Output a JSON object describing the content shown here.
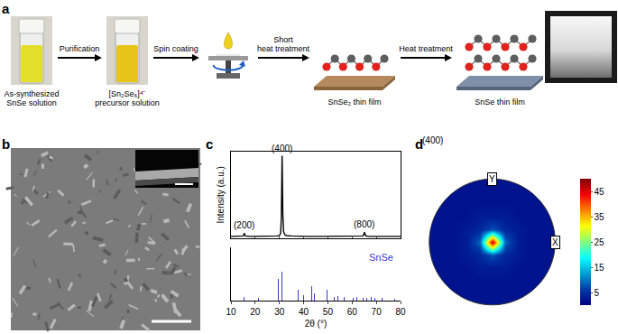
{
  "panels": {
    "a": {
      "letter": "a",
      "steps": [
        {
          "kind": "photo",
          "caption": [
            "As-synthesized",
            "SnSe solution"
          ]
        },
        {
          "kind": "arrow",
          "label": [
            "Purification"
          ]
        },
        {
          "kind": "photo",
          "caption": [
            "[Sn₂Se₆]⁴⁻",
            "precursor solution"
          ]
        },
        {
          "kind": "arrow",
          "label": [
            "Spin coating"
          ]
        },
        {
          "kind": "spin"
        },
        {
          "kind": "arrow",
          "label": [
            "Short",
            "heat treatment"
          ]
        },
        {
          "kind": "film",
          "caption": [
            "SnSe₂ thin film"
          ]
        },
        {
          "kind": "arrow",
          "label": [
            "Heat treatment"
          ]
        },
        {
          "kind": "film",
          "caption": [
            "SnSe thin film"
          ]
        },
        {
          "kind": "sample"
        }
      ]
    },
    "b": {
      "letter": "b"
    },
    "c": {
      "letter": "c"
    },
    "d": {
      "letter": "d"
    }
  },
  "chart_data": [
    {
      "type": "line",
      "x_label": "2θ (°)",
      "y_label": "Intensity (a.u.)",
      "xlim": [
        10,
        80
      ],
      "xticks": [
        10,
        20,
        30,
        40,
        50,
        60,
        70,
        80
      ],
      "ylim": [
        0,
        1.05
      ],
      "y2lim": [
        0,
        1.1
      ],
      "tick_labels": "x",
      "annotations": [
        {
          "text": "(200)",
          "x": 15.5,
          "y": 0.06
        },
        {
          "text": "(400)",
          "x": 31.1,
          "y": 1.0
        },
        {
          "text": "(800)",
          "x": 65.1,
          "y": 0.07
        }
      ],
      "series": [
        {
          "type": "line",
          "color": "#000000",
          "x": [
            10,
            12,
            14,
            15,
            15.3,
            15.5,
            15.7,
            16,
            18,
            20,
            22,
            24,
            26,
            28,
            29,
            30,
            30.5,
            30.8,
            31.0,
            31.1,
            31.2,
            31.4,
            31.7,
            32.2,
            33,
            35,
            38,
            42,
            46,
            50,
            55,
            60,
            63,
            64.5,
            64.9,
            65.1,
            65.3,
            65.7,
            67,
            70,
            75,
            80
          ],
          "values": [
            0.02,
            0.02,
            0.02,
            0.025,
            0.04,
            0.06,
            0.04,
            0.025,
            0.02,
            0.02,
            0.02,
            0.02,
            0.02,
            0.022,
            0.025,
            0.03,
            0.06,
            0.25,
            0.75,
            1.0,
            0.8,
            0.3,
            0.08,
            0.04,
            0.03,
            0.025,
            0.02,
            0.02,
            0.02,
            0.02,
            0.02,
            0.02,
            0.02,
            0.025,
            0.05,
            0.07,
            0.05,
            0.025,
            0.02,
            0.02,
            0.02,
            0.02
          ]
        },
        {
          "type": "bar",
          "name": "SnSe",
          "color": "#3a3ad0",
          "axis": "y2",
          "x": [
            15.4,
            21.5,
            25.3,
            26.4,
            29.4,
            30.5,
            31.1,
            32.0,
            37.8,
            38.3,
            40.1,
            43.3,
            44.5,
            47.2,
            49.7,
            51.3,
            52.7,
            54.0,
            56.7,
            58.0,
            60.6,
            61.8,
            64.5,
            66.0,
            68.0,
            69.5,
            72.5,
            77.5
          ],
          "values": [
            0.08,
            0.05,
            0.22,
            0.3,
            0.45,
            1.0,
            0.6,
            0.12,
            0.22,
            0.15,
            0.12,
            0.3,
            0.15,
            0.12,
            0.22,
            0.12,
            0.08,
            0.1,
            0.08,
            0.1,
            0.06,
            0.08,
            0.06,
            0.05,
            0.07,
            0.05,
            0.05,
            0.04
          ]
        }
      ]
    },
    {
      "type": "heatmap",
      "title": "(400)",
      "x_label": "X",
      "y_label": "Y",
      "tick_labels": false,
      "x": [
        -1,
        -0.8,
        -0.6,
        -0.4,
        -0.2,
        0,
        0.2,
        0.4,
        0.6,
        0.8,
        1
      ],
      "y": [
        -1,
        -0.8,
        -0.6,
        -0.4,
        -0.2,
        0,
        0.2,
        0.4,
        0.6,
        0.8,
        1
      ],
      "z": [
        [
          2,
          2,
          2,
          2,
          2,
          2,
          2,
          2,
          2,
          2,
          2
        ],
        [
          2,
          2,
          2,
          2,
          2,
          2,
          2,
          2,
          2,
          2,
          2
        ],
        [
          2,
          2,
          2,
          2,
          2,
          2,
          2,
          2,
          2,
          2,
          2
        ],
        [
          2,
          2,
          2,
          2,
          3,
          3,
          3,
          2,
          2,
          2,
          2
        ],
        [
          2,
          2,
          2,
          3,
          4,
          8,
          4,
          3,
          2,
          2,
          2
        ],
        [
          2,
          2,
          2,
          3,
          9,
          47,
          9,
          3,
          2,
          2,
          2
        ],
        [
          2,
          2,
          2,
          3,
          4,
          8,
          4,
          3,
          2,
          2,
          2
        ],
        [
          2,
          2,
          2,
          2,
          3,
          3,
          3,
          2,
          2,
          2,
          2
        ],
        [
          2,
          2,
          2,
          2,
          2,
          2,
          2,
          2,
          2,
          2,
          2
        ],
        [
          2,
          2,
          2,
          2,
          2,
          2,
          2,
          2,
          2,
          2,
          2
        ],
        [
          2,
          2,
          2,
          2,
          2,
          2,
          2,
          2,
          2,
          2,
          2
        ]
      ],
      "colorbar_range": [
        0,
        50
      ],
      "colorbar_ticks": [
        5,
        15,
        25,
        35,
        45
      ]
    }
  ]
}
